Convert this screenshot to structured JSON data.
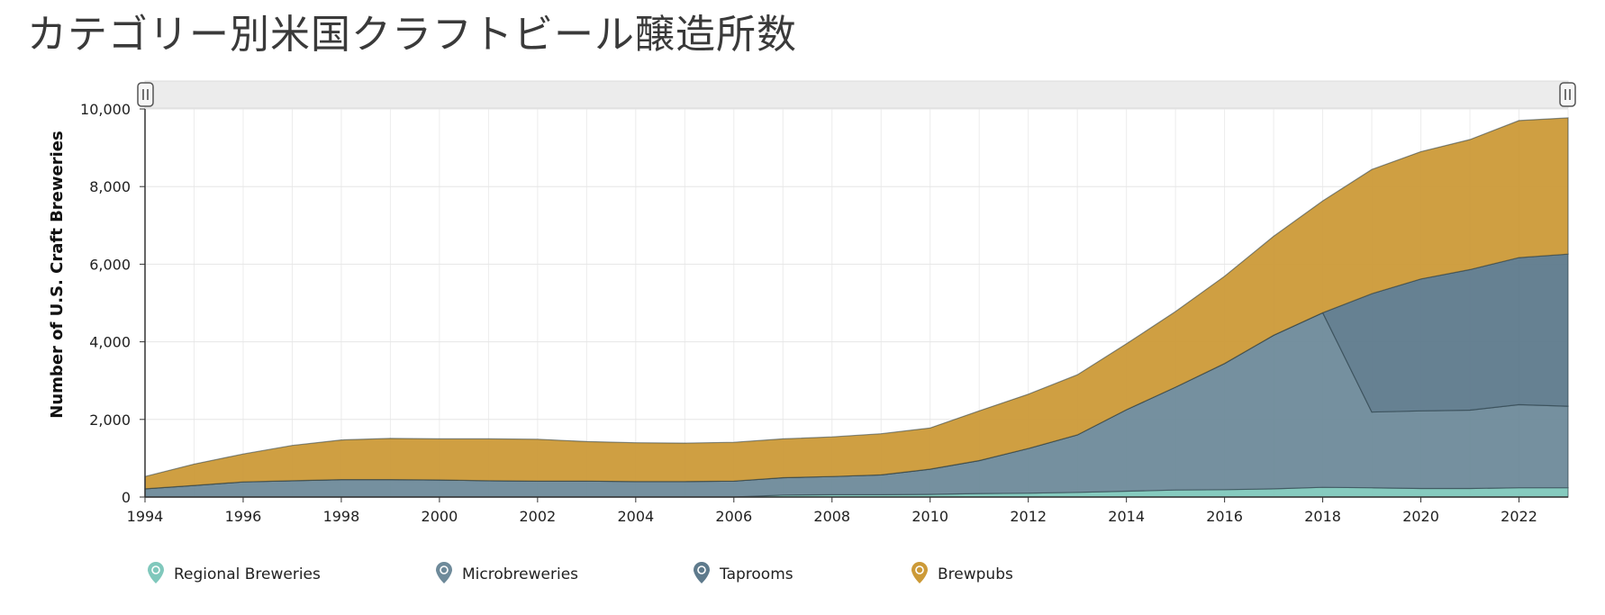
{
  "page": {
    "title": "カテゴリー別米国クラフトビール醸造所数"
  },
  "chart_data": {
    "type": "area",
    "stacked": true,
    "title": "カテゴリー別米国クラフトビール醸造所数",
    "xlabel": "",
    "ylabel": "Number of U.S. Craft Breweries",
    "x": [
      1994,
      1995,
      1996,
      1997,
      1998,
      1999,
      2000,
      2001,
      2002,
      2003,
      2004,
      2005,
      2006,
      2007,
      2008,
      2009,
      2010,
      2011,
      2012,
      2013,
      2014,
      2015,
      2016,
      2017,
      2018,
      2019,
      2020,
      2021,
      2022,
      2023
    ],
    "xlim": [
      1994,
      2023
    ],
    "ylim": [
      0,
      10000
    ],
    "x_ticks": [
      "1994",
      "1996",
      "1998",
      "2000",
      "2002",
      "2004",
      "2006",
      "2008",
      "2010",
      "2012",
      "2014",
      "2016",
      "2018",
      "2020",
      "2022"
    ],
    "y_ticks": [
      "0",
      "2,000",
      "4,000",
      "6,000",
      "8,000",
      "10,000"
    ],
    "grid": true,
    "legend_position": "bottom",
    "series": [
      {
        "name": "Regional Breweries",
        "color": "#80c8bc",
        "icon": "hop-pin-icon",
        "values": [
          0,
          0,
          0,
          0,
          0,
          0,
          0,
          0,
          0,
          0,
          0,
          0,
          0,
          50,
          60,
          60,
          70,
          90,
          100,
          120,
          150,
          180,
          190,
          210,
          250,
          240,
          220,
          220,
          240,
          240
        ]
      },
      {
        "name": "Microbreweries",
        "color": "#6e8a9a",
        "icon": "glass-pin-icon",
        "values": [
          210,
          300,
          390,
          420,
          450,
          450,
          440,
          420,
          410,
          410,
          400,
          400,
          410,
          450,
          470,
          510,
          650,
          850,
          1150,
          1480,
          2100,
          2650,
          3250,
          3960,
          4500,
          1950,
          2000,
          2020,
          2140,
          2100
        ]
      },
      {
        "name": "Taprooms",
        "color": "#5e7a8c",
        "icon": "glass-pin-icon",
        "values": [
          0,
          0,
          0,
          0,
          0,
          0,
          0,
          0,
          0,
          0,
          0,
          0,
          0,
          0,
          0,
          0,
          0,
          0,
          0,
          0,
          0,
          0,
          0,
          0,
          0,
          3050,
          3400,
          3620,
          3790,
          3920
        ]
      },
      {
        "name": "Brewpubs",
        "color": "#cc9a38",
        "icon": "brewpub-pin-icon",
        "values": [
          320,
          550,
          720,
          910,
          1020,
          1060,
          1060,
          1080,
          1080,
          1020,
          1000,
          990,
          1000,
          1000,
          1020,
          1060,
          1060,
          1280,
          1400,
          1550,
          1700,
          1950,
          2250,
          2550,
          2880,
          3200,
          3280,
          3350,
          3530,
          3510
        ]
      }
    ]
  }
}
